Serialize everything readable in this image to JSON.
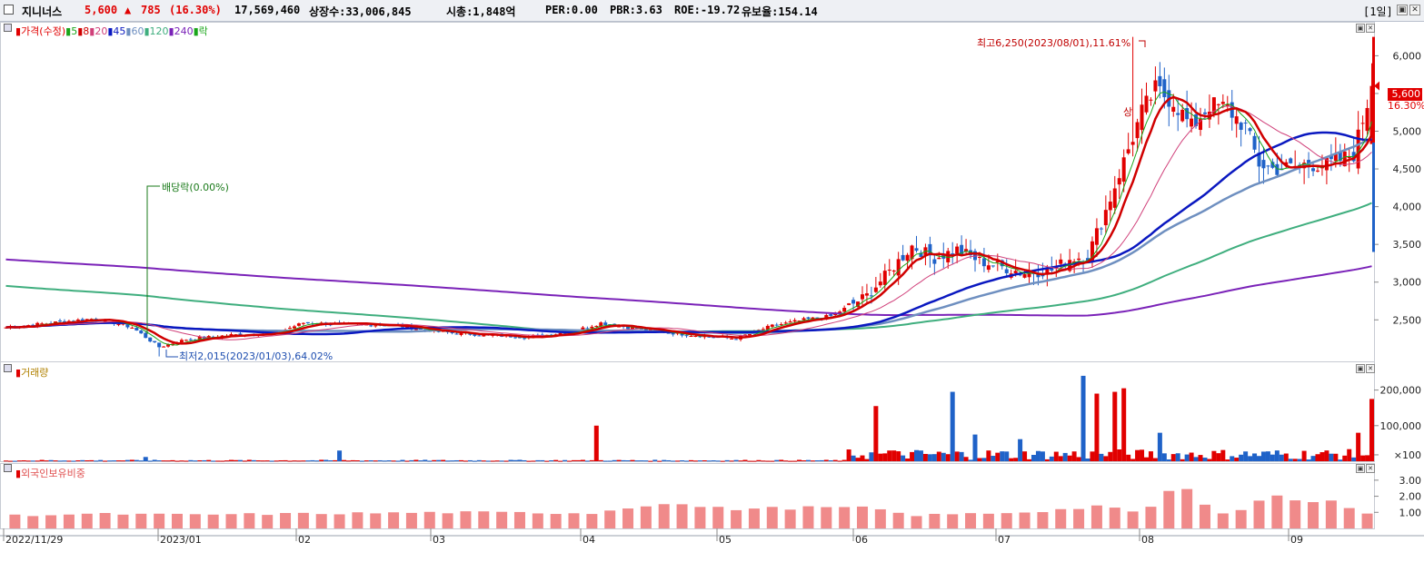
{
  "header": {
    "stock_name": "지니너스",
    "price": "5,600",
    "change_arrow": "▲",
    "change": "785",
    "change_pct": "(16.30%)",
    "volume": "17,569,460",
    "listed_shares": "상장수:33,006,845",
    "market_cap": "시총:1,848억",
    "per": "PER:0.00",
    "pbr": "PBR:3.63",
    "roe": "ROE:-19.72",
    "reserve_ratio": "유보율:154.14",
    "period": "[1일]"
  },
  "colors": {
    "up": "#e10000",
    "down": "#1f62c8",
    "ma5": "#1aa51a",
    "ma8": "#d00000",
    "ma20": "#d0407a",
    "ma45": "#0a18c0",
    "ma60": "#6e8fc0",
    "ma120": "#3fae7e",
    "ma240": "#7a22b8",
    "foreign": "#f08a8a"
  },
  "price_panel": {
    "legend": [
      {
        "label": "가격(수정)",
        "color": "#e10000"
      },
      {
        "label": "5",
        "color": "#1aa51a"
      },
      {
        "label": "8",
        "color": "#d00000"
      },
      {
        "label": "20",
        "color": "#d0407a"
      },
      {
        "label": "45",
        "color": "#0a18c0"
      },
      {
        "label": "60",
        "color": "#6e8fc0"
      },
      {
        "label": "120",
        "color": "#3fae7e"
      },
      {
        "label": "240",
        "color": "#7a22b8"
      },
      {
        "label": "락",
        "color": "#1aa51a"
      }
    ],
    "y_ticks": [
      "2,500",
      "3,000",
      "3,500",
      "4,000",
      "4,500",
      "5,000",
      "5,500",
      "6,000"
    ],
    "high_annotation": "최고6,250(2023/08/01),11.61%",
    "low_annotation": "최저2,015(2023/01/03),64.02%",
    "dividend_annotation": "배당락(0.00%)",
    "limit_up_mark": "상",
    "current_price_tag": "5,600",
    "current_pct_tag": "16.30%"
  },
  "volume_panel": {
    "legend": "거래량",
    "y_ticks": [
      "200,000",
      "100,000",
      "×100"
    ]
  },
  "foreign_panel": {
    "legend": "외국인보유비중",
    "y_ticks": [
      "3.00",
      "2.00",
      "1.00"
    ]
  },
  "x_axis_labels": [
    "2022/11/29",
    "2023/01",
    "02",
    "03",
    "04",
    "05",
    "06",
    "07",
    "08",
    "09"
  ],
  "chart_data": {
    "type": "candlestick",
    "x_labels": [
      "2022/11/29",
      "2023/01",
      "02",
      "03",
      "04",
      "05",
      "06",
      "07",
      "08",
      "09"
    ],
    "price_axis_range": [
      1950,
      6450
    ],
    "highest": {
      "value": 6250,
      "date": "2023/08/01",
      "pct": 11.61
    },
    "lowest": {
      "value": 2015,
      "date": "2023/01/03",
      "pct": 64.02
    },
    "last": {
      "value": 5600,
      "change": 785,
      "change_pct": 16.3
    },
    "price_keypoints": [
      [
        0,
        2400
      ],
      [
        10,
        2460
      ],
      [
        20,
        2520
      ],
      [
        28,
        2400
      ],
      [
        34,
        2140
      ],
      [
        40,
        2240
      ],
      [
        50,
        2300
      ],
      [
        60,
        2330
      ],
      [
        66,
        2460
      ],
      [
        76,
        2440
      ],
      [
        86,
        2430
      ],
      [
        96,
        2340
      ],
      [
        106,
        2300
      ],
      [
        116,
        2270
      ],
      [
        126,
        2350
      ],
      [
        132,
        2460
      ],
      [
        140,
        2380
      ],
      [
        150,
        2310
      ],
      [
        158,
        2270
      ],
      [
        162,
        2250
      ],
      [
        165,
        2320
      ],
      [
        170,
        2420
      ],
      [
        177,
        2500
      ],
      [
        183,
        2550
      ],
      [
        187,
        2680
      ],
      [
        191,
        2820
      ],
      [
        196,
        3140
      ],
      [
        201,
        3480
      ],
      [
        206,
        3320
      ],
      [
        211,
        3430
      ],
      [
        216,
        3280
      ],
      [
        221,
        3200
      ],
      [
        226,
        3120
      ],
      [
        232,
        3160
      ],
      [
        236,
        3310
      ],
      [
        240,
        3350
      ],
      [
        244,
        3950
      ],
      [
        248,
        4600
      ],
      [
        252,
        5250
      ],
      [
        255,
        5550
      ],
      [
        259,
        5400
      ],
      [
        263,
        5050
      ],
      [
        267,
        5350
      ],
      [
        271,
        5300
      ],
      [
        275,
        5050
      ],
      [
        278,
        4570
      ],
      [
        281,
        4500
      ],
      [
        285,
        4520
      ],
      [
        289,
        4570
      ],
      [
        293,
        4550
      ],
      [
        296,
        4620
      ],
      [
        299,
        4700
      ],
      [
        303,
        5600
      ]
    ],
    "volume_peaks": [
      [
        31,
        12
      ],
      [
        74,
        30
      ],
      [
        131,
        100
      ],
      [
        193,
        155
      ],
      [
        198,
        28
      ],
      [
        210,
        195
      ],
      [
        215,
        75
      ],
      [
        225,
        62
      ],
      [
        239,
        240
      ],
      [
        242,
        190
      ],
      [
        246,
        195
      ],
      [
        248,
        205
      ],
      [
        256,
        80
      ],
      [
        300,
        80
      ],
      [
        303,
        175
      ]
    ],
    "foreign_ratio_keypoints": [
      [
        0,
        0.8
      ],
      [
        20,
        0.9
      ],
      [
        40,
        0.85
      ],
      [
        60,
        0.9
      ],
      [
        100,
        1.0
      ],
      [
        130,
        0.95
      ],
      [
        145,
        1.6
      ],
      [
        160,
        1.2
      ],
      [
        180,
        1.3
      ],
      [
        193,
        1.25
      ],
      [
        200,
        0.8
      ],
      [
        225,
        1.0
      ],
      [
        236,
        1.2
      ],
      [
        242,
        1.4
      ],
      [
        250,
        1.0
      ],
      [
        256,
        1.55
      ],
      [
        260,
        3.0
      ],
      [
        265,
        1.5
      ],
      [
        270,
        1.0
      ],
      [
        275,
        1.3
      ],
      [
        280,
        2.1
      ],
      [
        285,
        1.8
      ],
      [
        295,
        1.6
      ],
      [
        303,
        0.9
      ]
    ],
    "foreign_axis_range": [
      0,
      3.5
    ],
    "volume_axis_range": [
      0,
      250000
    ]
  }
}
